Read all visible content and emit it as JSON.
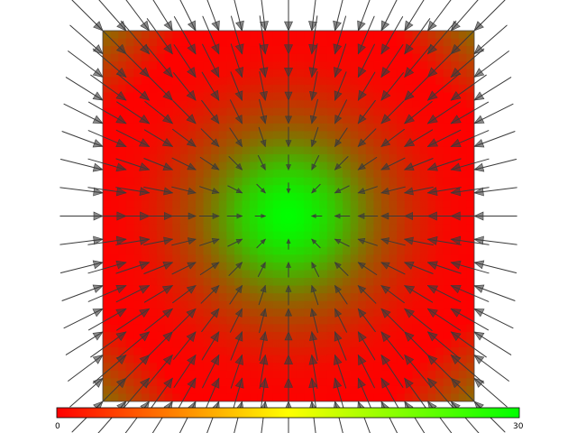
{
  "chart_data": {
    "type": "heatmap",
    "subtype": "vector-field",
    "title": "",
    "xlabel": "",
    "ylabel": "",
    "field": {
      "grid_rows": 17,
      "grid_cols": 17,
      "center": [
        0.5,
        0.5
      ],
      "inner_value": 30,
      "outer_value": 0,
      "arrow_direction": "inward",
      "arrow_color": "#3a3a3a"
    },
    "colorbar": {
      "min_label": "0",
      "max_label": "30",
      "min": 0,
      "max": 30,
      "colors": [
        "#ff0000",
        "#ffff00",
        "#00ff00"
      ],
      "position": "bottom"
    },
    "colors": {
      "low": "#ff0000",
      "mid": "#ffff00",
      "high": "#00ff00",
      "background": "#ffffff"
    }
  }
}
